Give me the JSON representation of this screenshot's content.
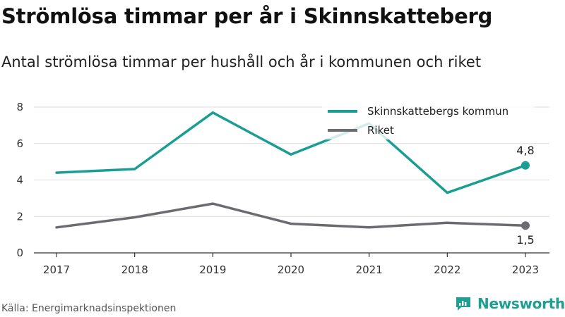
{
  "header": {
    "title": "Strömlösa timmar per år i Skinnskatteberg",
    "subtitle": "Antal strömlösa timmar per hushåll och år i kommunen och riket"
  },
  "footer": {
    "source": "Källa: Energimarknadsinspektionen",
    "brand": "Newsworthy",
    "brand_icon": "newsworthy-logo-icon"
  },
  "colors": {
    "kommun": "#1a9e93",
    "riket": "#6b6b70",
    "grid": "#dddddd",
    "axis": "#333333"
  },
  "chart_data": {
    "type": "line",
    "x": [
      "2017",
      "2018",
      "2019",
      "2020",
      "2021",
      "2022",
      "2023"
    ],
    "ylim": [
      0,
      8
    ],
    "yticks": [
      "0",
      "2",
      "4",
      "6",
      "8"
    ],
    "grid": "horizontal",
    "legend_position": "top-right",
    "series": [
      {
        "name": "Skinnskattebergs kommun",
        "values": [
          4.4,
          4.6,
          7.7,
          5.4,
          7.1,
          3.3,
          4.8
        ],
        "end_label": "4,8"
      },
      {
        "name": "Riket",
        "values": [
          1.4,
          1.95,
          2.7,
          1.6,
          1.4,
          1.65,
          1.5
        ],
        "end_label": "1,5"
      }
    ]
  }
}
